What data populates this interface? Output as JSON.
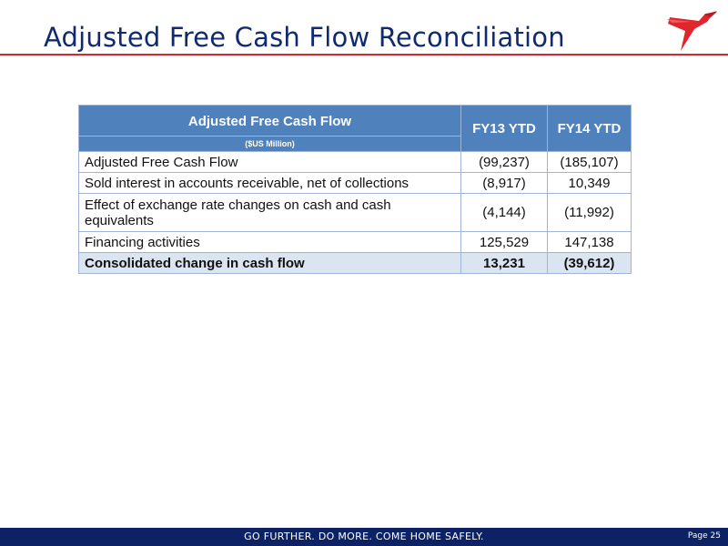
{
  "slide": {
    "title": "Adjusted Free Cash Flow Reconciliation",
    "slogan": "GO FURTHER. DO MORE. COME HOME SAFELY.",
    "page": "Page 25",
    "colors": {
      "title": "#102a72",
      "rule": "#d7282f",
      "header": "#4f81bd",
      "total_row": "#dbe5f1",
      "footer": "#0c2264"
    },
    "logo_icon": "red-hummingbird-logo"
  },
  "table": {
    "header": {
      "title": "Adjusted Free Cash Flow",
      "subtitle": "($US Million)",
      "col1": "FY13 YTD",
      "col2": "FY14 YTD"
    },
    "rows": [
      {
        "label": "Adjusted Free Cash Flow",
        "fy13": "(99,237)",
        "fy14": "(185,107)"
      },
      {
        "label": "Sold interest in accounts receivable, net of collections",
        "fy13": "(8,917)",
        "fy14": "10,349"
      },
      {
        "label": "Effect of exchange rate changes on cash and cash equivalents",
        "fy13": "(4,144)",
        "fy14": "(11,992)"
      },
      {
        "label": "Financing activities",
        "fy13": "125,529",
        "fy14": "147,138"
      }
    ],
    "total": {
      "label": "Consolidated change in cash flow",
      "fy13": "13,231",
      "fy14": "(39,612)"
    }
  }
}
